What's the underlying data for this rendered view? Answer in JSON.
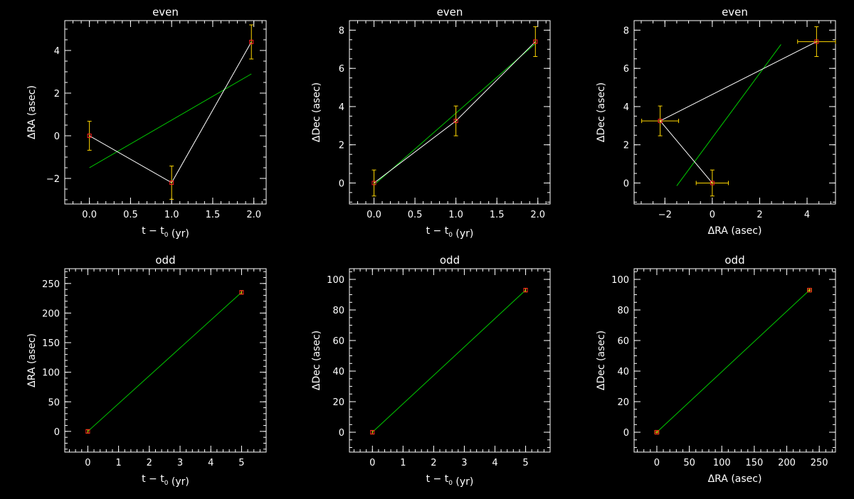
{
  "colors": {
    "background": "#000000",
    "axes": "#ffffff",
    "data_line": "#ffffff",
    "fit_line": "#00cc00",
    "errorbar": "#ffd700",
    "marker": "#ff2020"
  },
  "chart_data": [
    {
      "type": "line",
      "title": "even",
      "xlabel": "t − t0 (yr)",
      "ylabel": "ΔRA (asec)",
      "xlim": [
        -0.3,
        2.15
      ],
      "ylim": [
        -3.2,
        5.4
      ],
      "xticks": [
        0.0,
        0.5,
        1.0,
        1.5,
        2.0
      ],
      "xtick_labels": [
        "0.0",
        "0.5",
        "1.0",
        "1.5",
        "2.0"
      ],
      "yticks": [
        -2,
        0,
        2,
        4
      ],
      "ytick_labels": [
        "−2",
        "0",
        "2",
        "4"
      ],
      "points": [
        {
          "x": 0.0,
          "y": 0.0,
          "xerr": 0,
          "yerr": 0.68
        },
        {
          "x": 1.0,
          "y": -2.2,
          "xerr": 0,
          "yerr": 0.78
        },
        {
          "x": 1.97,
          "y": 4.4,
          "xerr": 0,
          "yerr": 0.8
        }
      ],
      "fit": [
        [
          0.0,
          -1.5
        ],
        [
          1.97,
          2.9
        ]
      ]
    },
    {
      "type": "line",
      "title": "even",
      "xlabel": "t − t0 (yr)",
      "ylabel": "ΔDec (asec)",
      "xlim": [
        -0.3,
        2.15
      ],
      "ylim": [
        -1.1,
        8.5
      ],
      "xticks": [
        0.0,
        0.5,
        1.0,
        1.5,
        2.0
      ],
      "xtick_labels": [
        "0.0",
        "0.5",
        "1.0",
        "1.5",
        "2.0"
      ],
      "yticks": [
        0,
        2,
        4,
        6,
        8
      ],
      "ytick_labels": [
        "0",
        "2",
        "4",
        "6",
        "8"
      ],
      "points": [
        {
          "x": 0.0,
          "y": 0.0,
          "xerr": 0,
          "yerr": 0.68
        },
        {
          "x": 1.0,
          "y": 3.25,
          "xerr": 0,
          "yerr": 0.78
        },
        {
          "x": 1.97,
          "y": 7.4,
          "xerr": 0,
          "yerr": 0.78
        }
      ],
      "fit": [
        [
          0.0,
          -0.1
        ],
        [
          1.97,
          7.3
        ]
      ]
    },
    {
      "type": "scatter",
      "title": "even",
      "xlabel": "ΔRA (asec)",
      "ylabel": "ΔDec (asec)",
      "xlim": [
        -3.3,
        5.2
      ],
      "ylim": [
        -1.1,
        8.5
      ],
      "xticks": [
        -2,
        0,
        2,
        4
      ],
      "xtick_labels": [
        "−2",
        "0",
        "2",
        "4"
      ],
      "yticks": [
        0,
        2,
        4,
        6,
        8
      ],
      "ytick_labels": [
        "0",
        "2",
        "4",
        "6",
        "8"
      ],
      "points": [
        {
          "x": -2.2,
          "y": 3.25,
          "xerr": 0.78,
          "yerr": 0.78
        },
        {
          "x": 0.0,
          "y": 0.0,
          "xerr": 0.68,
          "yerr": 0.68
        },
        {
          "x": 4.4,
          "y": 7.4,
          "xerr": 0.8,
          "yerr": 0.78
        }
      ],
      "line_order": [
        1,
        0,
        2
      ],
      "fit": [
        [
          -1.5,
          -0.15
        ],
        [
          2.9,
          7.25
        ]
      ]
    },
    {
      "type": "line",
      "title": "odd",
      "xlabel": "t − t0 (yr)",
      "ylabel": "ΔRA (asec)",
      "xlim": [
        -0.75,
        5.8
      ],
      "ylim": [
        -35,
        275
      ],
      "xticks": [
        0,
        1,
        2,
        3,
        4,
        5
      ],
      "xtick_labels": [
        "0",
        "1",
        "2",
        "3",
        "4",
        "5"
      ],
      "yticks": [
        0,
        50,
        100,
        150,
        200,
        250
      ],
      "ytick_labels": [
        "0",
        "50",
        "100",
        "150",
        "200",
        "250"
      ],
      "points": [
        {
          "x": 0.0,
          "y": 0.0,
          "xerr": 0,
          "yerr": 3
        },
        {
          "x": 5.0,
          "y": 235,
          "xerr": 0,
          "yerr": 3
        }
      ],
      "fit": [
        [
          0.0,
          0.0
        ],
        [
          5.0,
          235
        ]
      ]
    },
    {
      "type": "line",
      "title": "odd",
      "xlabel": "t − t0 (yr)",
      "ylabel": "ΔDec (asec)",
      "xlim": [
        -0.75,
        5.8
      ],
      "ylim": [
        -13,
        107
      ],
      "xticks": [
        0,
        1,
        2,
        3,
        4,
        5
      ],
      "xtick_labels": [
        "0",
        "1",
        "2",
        "3",
        "4",
        "5"
      ],
      "yticks": [
        0,
        20,
        40,
        60,
        80,
        100
      ],
      "ytick_labels": [
        "0",
        "20",
        "40",
        "60",
        "80",
        "100"
      ],
      "points": [
        {
          "x": 0.0,
          "y": 0.0,
          "xerr": 0,
          "yerr": 1.2
        },
        {
          "x": 5.0,
          "y": 93,
          "xerr": 0,
          "yerr": 1.2
        }
      ],
      "fit": [
        [
          0.0,
          0.0
        ],
        [
          5.0,
          93
        ]
      ]
    },
    {
      "type": "scatter",
      "title": "odd",
      "xlabel": "ΔRA (asec)",
      "ylabel": "ΔDec (asec)",
      "xlim": [
        -35,
        275
      ],
      "ylim": [
        -13,
        107
      ],
      "xticks": [
        0,
        50,
        100,
        150,
        200,
        250
      ],
      "xtick_labels": [
        "0",
        "50",
        "100",
        "150",
        "200",
        "250"
      ],
      "yticks": [
        0,
        20,
        40,
        60,
        80,
        100
      ],
      "ytick_labels": [
        "0",
        "20",
        "40",
        "60",
        "80",
        "100"
      ],
      "points": [
        {
          "x": 0.0,
          "y": 0.0,
          "xerr": 3,
          "yerr": 1.2
        },
        {
          "x": 235,
          "y": 93,
          "xerr": 3,
          "yerr": 1.2
        }
      ],
      "fit": [
        [
          0.0,
          0.0
        ],
        [
          235,
          93
        ]
      ]
    }
  ]
}
